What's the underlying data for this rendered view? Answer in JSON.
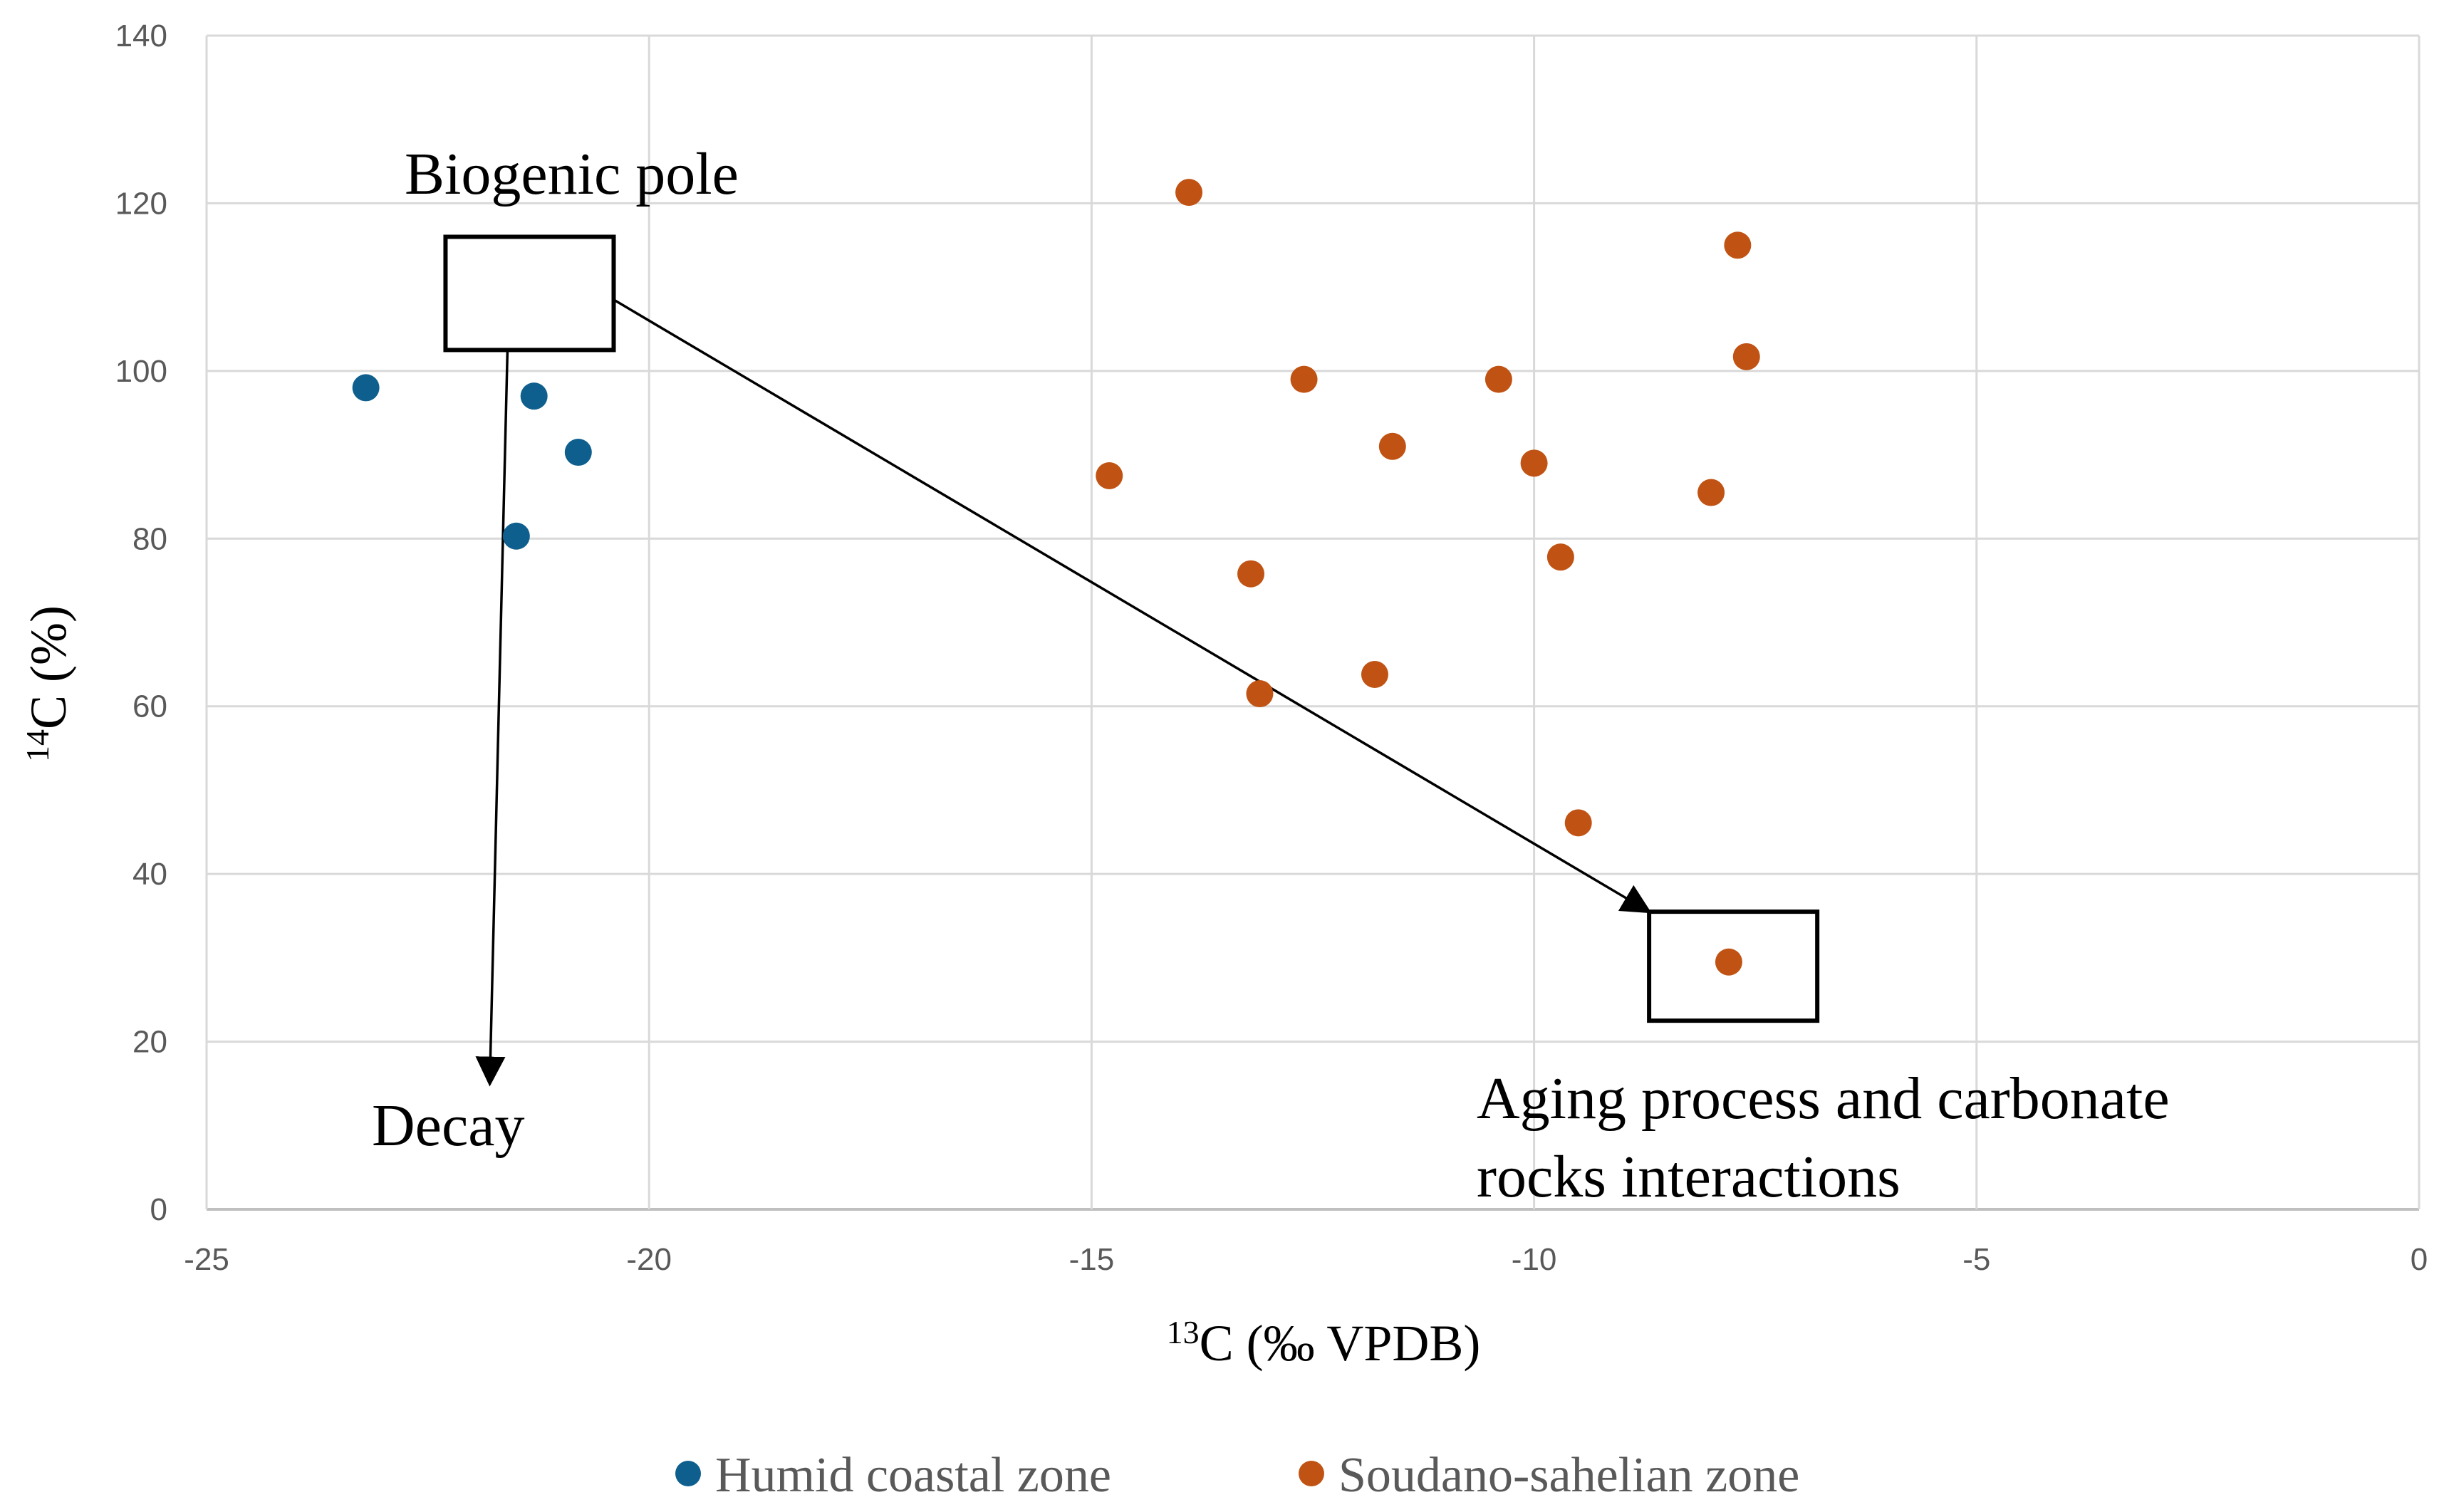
{
  "chart_data": {
    "type": "scatter",
    "xlabel": "13C (‰ VPDB)",
    "xlabel_sup": "13",
    "xlabel_rest": "C (‰ VPDB)",
    "ylabel": "14C (%)",
    "ylabel_sup": "14",
    "ylabel_rest": "C (%)",
    "xlim": [
      -25,
      0
    ],
    "ylim": [
      0,
      140
    ],
    "xticks": [
      -25,
      -20,
      -15,
      -10,
      -5,
      0
    ],
    "yticks": [
      0,
      20,
      40,
      60,
      80,
      100,
      120,
      140
    ],
    "grid": true,
    "legend_position": "bottom",
    "series": [
      {
        "name": "Humid coastal zone",
        "color": "#0e5f8e",
        "points": [
          {
            "x": -23.2,
            "y": 98
          },
          {
            "x": -21.3,
            "y": 97
          },
          {
            "x": -20.8,
            "y": 90.3
          },
          {
            "x": -21.5,
            "y": 80.3
          }
        ]
      },
      {
        "name": "Soudano-sahelian zone",
        "color": "#c05313",
        "points": [
          {
            "x": -13.9,
            "y": 121.3
          },
          {
            "x": -7.7,
            "y": 115
          },
          {
            "x": -7.6,
            "y": 101.7
          },
          {
            "x": -12.6,
            "y": 99
          },
          {
            "x": -10.4,
            "y": 99
          },
          {
            "x": -11.6,
            "y": 91
          },
          {
            "x": -10.0,
            "y": 89
          },
          {
            "x": -14.8,
            "y": 87.5
          },
          {
            "x": -8.0,
            "y": 85.5
          },
          {
            "x": -9.7,
            "y": 77.8
          },
          {
            "x": -13.2,
            "y": 75.8
          },
          {
            "x": -11.8,
            "y": 63.8
          },
          {
            "x": -13.1,
            "y": 61.5
          },
          {
            "x": -9.5,
            "y": 46.1
          },
          {
            "x": -7.8,
            "y": 29.5
          }
        ]
      }
    ],
    "annotations": {
      "biogenic_pole": "Biogenic pole",
      "decay": "Decay",
      "aging_line1": "Aging process and carbonate",
      "aging_line2": "rocks interactions"
    },
    "boxes": [
      {
        "name": "biogenic-pole-box",
        "x0": -22.3,
        "x1": -20.4,
        "y0": 102.5,
        "y1": 116
      },
      {
        "name": "aging-process-box",
        "x0": -8.7,
        "x1": -6.8,
        "y0": 22.5,
        "y1": 35.5
      }
    ],
    "arrows": [
      {
        "name": "decay-arrow",
        "from": [
          -21.6,
          102.5
        ],
        "to": [
          -21.8,
          15
        ]
      },
      {
        "name": "aging-arrow",
        "from": [
          -20.4,
          108.5
        ],
        "to": [
          -8.7,
          35.5
        ]
      }
    ]
  }
}
